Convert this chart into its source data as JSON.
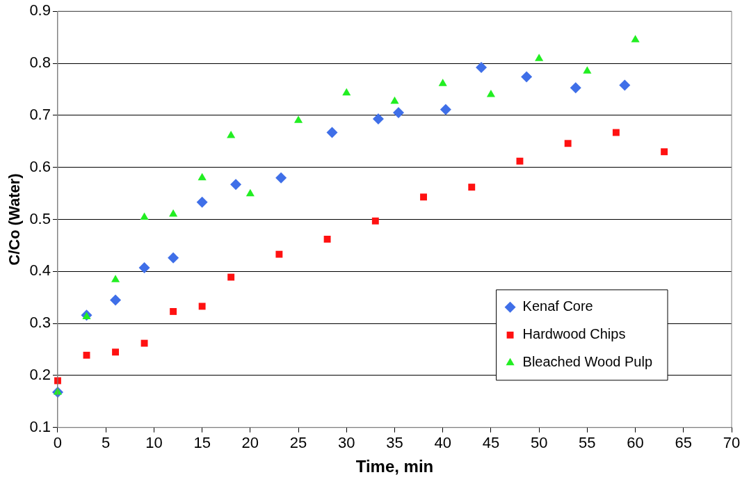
{
  "chart_data": {
    "type": "scatter",
    "xlabel": "Time, min",
    "ylabel": "C/Co (Water)",
    "xlim": [
      0,
      70
    ],
    "xticks": [
      0,
      5,
      10,
      15,
      20,
      25,
      30,
      35,
      40,
      45,
      50,
      55,
      60,
      65,
      70
    ],
    "ylim": [
      0.1,
      0.9
    ],
    "yticks": [
      0.1,
      0.2,
      0.3,
      0.4,
      0.5,
      0.6,
      0.7,
      0.8,
      0.9
    ],
    "grid": "y",
    "legend": "bottom right",
    "series": [
      {
        "name": "Kenaf Core",
        "color": "#3f6fe8",
        "marker": "diamond",
        "x": [
          0,
          3,
          6,
          9,
          12,
          15,
          18.5,
          23.2,
          28.5,
          33.3,
          35.4,
          40.3,
          44,
          48.7,
          53.8,
          58.9
        ],
        "values": [
          0.168,
          0.316,
          0.345,
          0.407,
          0.426,
          0.533,
          0.567,
          0.58,
          0.667,
          0.693,
          0.705,
          0.711,
          0.792,
          0.774,
          0.753,
          0.758
        ]
      },
      {
        "name": "Hardwood Chips",
        "color": "#ff1111",
        "marker": "square",
        "x": [
          0,
          3,
          6,
          9,
          12,
          15,
          18,
          23,
          28,
          33,
          38,
          43,
          48,
          53,
          58,
          63
        ],
        "values": [
          0.19,
          0.239,
          0.245,
          0.262,
          0.323,
          0.333,
          0.389,
          0.433,
          0.462,
          0.497,
          0.543,
          0.562,
          0.612,
          0.646,
          0.667,
          0.63
        ]
      },
      {
        "name": "Bleached Wood Pulp",
        "color": "#22ee22",
        "marker": "triangle",
        "x": [
          0,
          3,
          6,
          9,
          12,
          15,
          18,
          20,
          25,
          30,
          35,
          40,
          45,
          50,
          55,
          60
        ],
        "values": [
          0.168,
          0.313,
          0.384,
          0.504,
          0.51,
          0.58,
          0.661,
          0.549,
          0.69,
          0.743,
          0.727,
          0.761,
          0.74,
          0.809,
          0.785,
          0.845
        ]
      }
    ]
  }
}
